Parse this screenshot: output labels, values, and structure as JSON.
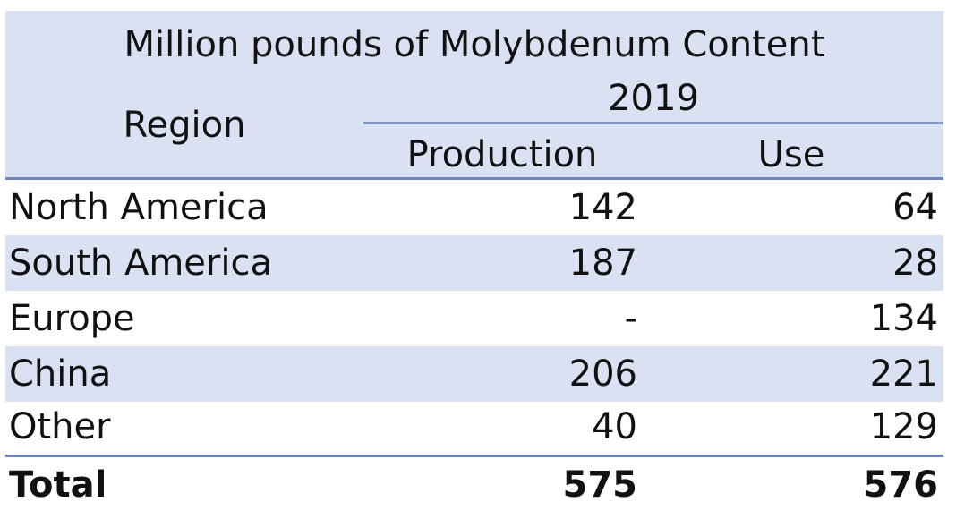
{
  "table": {
    "title": "Million pounds of Molybdenum Content",
    "year": "2019",
    "region_header": "Region",
    "production_header": "Production",
    "use_header": "Use",
    "rows": [
      {
        "region": "North America",
        "production": "142",
        "use": "64"
      },
      {
        "region": "South America",
        "production": "187",
        "use": "28"
      },
      {
        "region": "Europe",
        "production": "-",
        "use": "134"
      },
      {
        "region": "China",
        "production": "206",
        "use": "221"
      },
      {
        "region": "Other",
        "production": "40",
        "use": "129"
      }
    ],
    "total": {
      "region": "Total",
      "production": "575",
      "use": "576"
    }
  },
  "colors": {
    "header_fill": "#d9e1f2",
    "rule": "#6f87b8",
    "text": "#111111"
  }
}
